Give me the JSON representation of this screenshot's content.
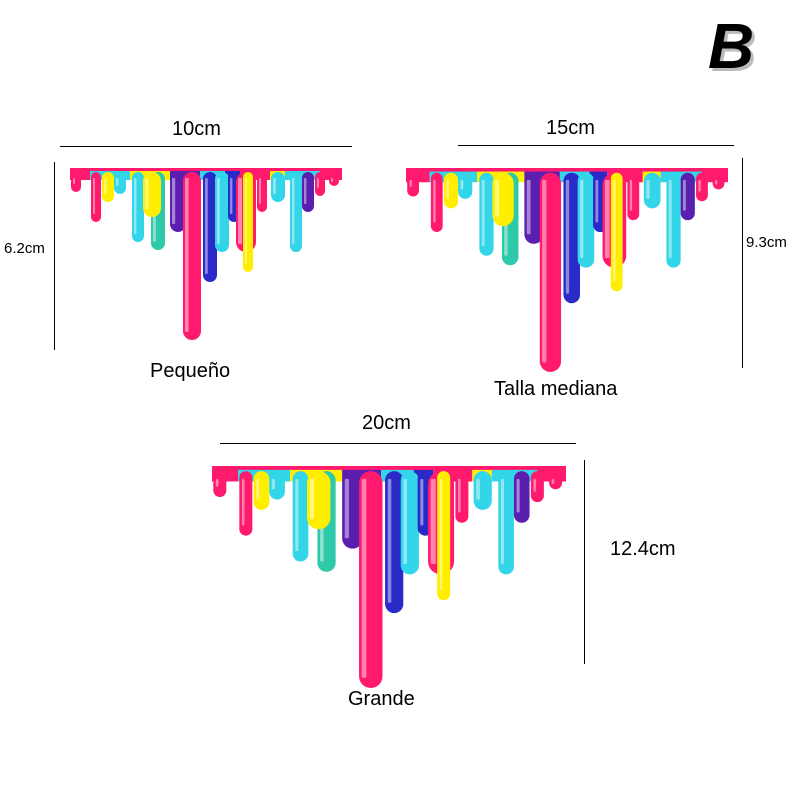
{
  "variant_letter": "B",
  "sizes": [
    {
      "name": "Pequeño",
      "width_label": "10cm",
      "height_label": "6.2cm"
    },
    {
      "name": "Talla mediana",
      "width_label": "15cm",
      "height_label": "9.3cm"
    },
    {
      "name": "Grande",
      "width_label": "20cm",
      "height_label": "12.4cm"
    }
  ],
  "colors": {
    "magenta": "#ff1a6e",
    "yellow": "#ffee00",
    "cyan": "#33d6e8",
    "teal": "#2ec9a8",
    "blue": "#2a2ac8",
    "purple": "#5b1fb0"
  }
}
